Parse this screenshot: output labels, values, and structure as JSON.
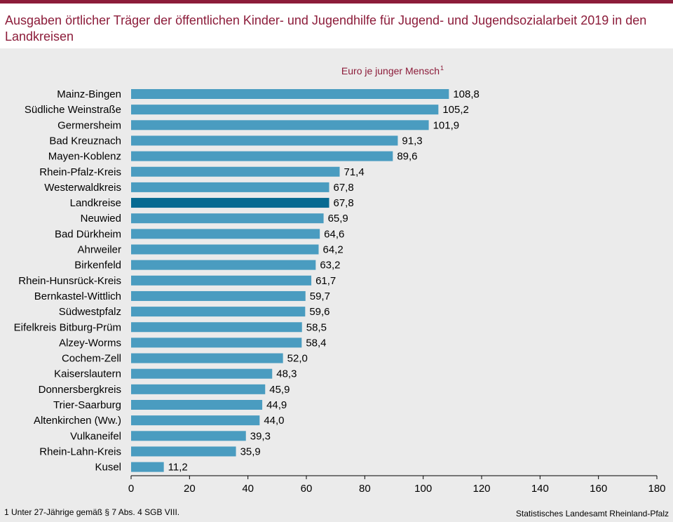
{
  "title": "Ausgaben örtlicher Träger der öffentlichen Kinder- und Jugendhilfe für Jugend- und Jugendsozialarbeit 2019 in den Landkreisen",
  "footnote": "1 Unter 27-Jährige  gemäß § 7 Abs. 4 SGB VIII.",
  "source": "Statistisches Landesamt Rheinland-Pfalz",
  "colors": {
    "bar": "#4a9cc0",
    "highlight": "#076a91",
    "accent": "#8c1c3a",
    "background": "#ebebeb"
  },
  "chart_data": {
    "type": "bar",
    "orientation": "horizontal",
    "unit_label": "Euro je junger  Mensch",
    "unit_superscript": "1",
    "categories": [
      "Mainz-Bingen",
      "Südliche Weinstraße",
      "Germersheim",
      "Bad Kreuznach",
      "Mayen-Koblenz",
      "Rhein-Pfalz-Kreis",
      "Westerwaldkreis",
      "Landkreise",
      "Neuwied",
      "Bad Dürkheim",
      "Ahrweiler",
      "Birkenfeld",
      "Rhein-Hunsrück-Kreis",
      "Bernkastel-Wittlich",
      "Südwestpfalz",
      "Eifelkreis Bitburg-Prüm",
      "Alzey-Worms",
      "Cochem-Zell",
      "Kaiserslautern",
      "Donnersbergkreis",
      "Trier-Saarburg",
      "Altenkirchen (Ww.)",
      "Vulkaneifel",
      "Rhein-Lahn-Kreis",
      "Kusel"
    ],
    "values": [
      108.8,
      105.2,
      101.9,
      91.3,
      89.6,
      71.4,
      67.8,
      67.8,
      65.9,
      64.6,
      64.2,
      63.2,
      61.7,
      59.7,
      59.6,
      58.5,
      58.4,
      52.0,
      48.3,
      45.9,
      44.9,
      44.0,
      39.3,
      35.9,
      11.2
    ],
    "value_labels": [
      "108,8",
      "105,2",
      "101,9",
      "91,3",
      "89,6",
      "71,4",
      "67,8",
      "67,8",
      "65,9",
      "64,6",
      "64,2",
      "63,2",
      "61,7",
      "59,7",
      "59,6",
      "58,5",
      "58,4",
      "52,0",
      "48,3",
      "45,9",
      "44,9",
      "44,0",
      "39,3",
      "35,9",
      "11,2"
    ],
    "highlight_category": "Landkreise",
    "xlim": [
      0,
      180
    ],
    "xticks": [
      0,
      20,
      40,
      60,
      80,
      100,
      120,
      140,
      160,
      180
    ],
    "grid": false
  }
}
